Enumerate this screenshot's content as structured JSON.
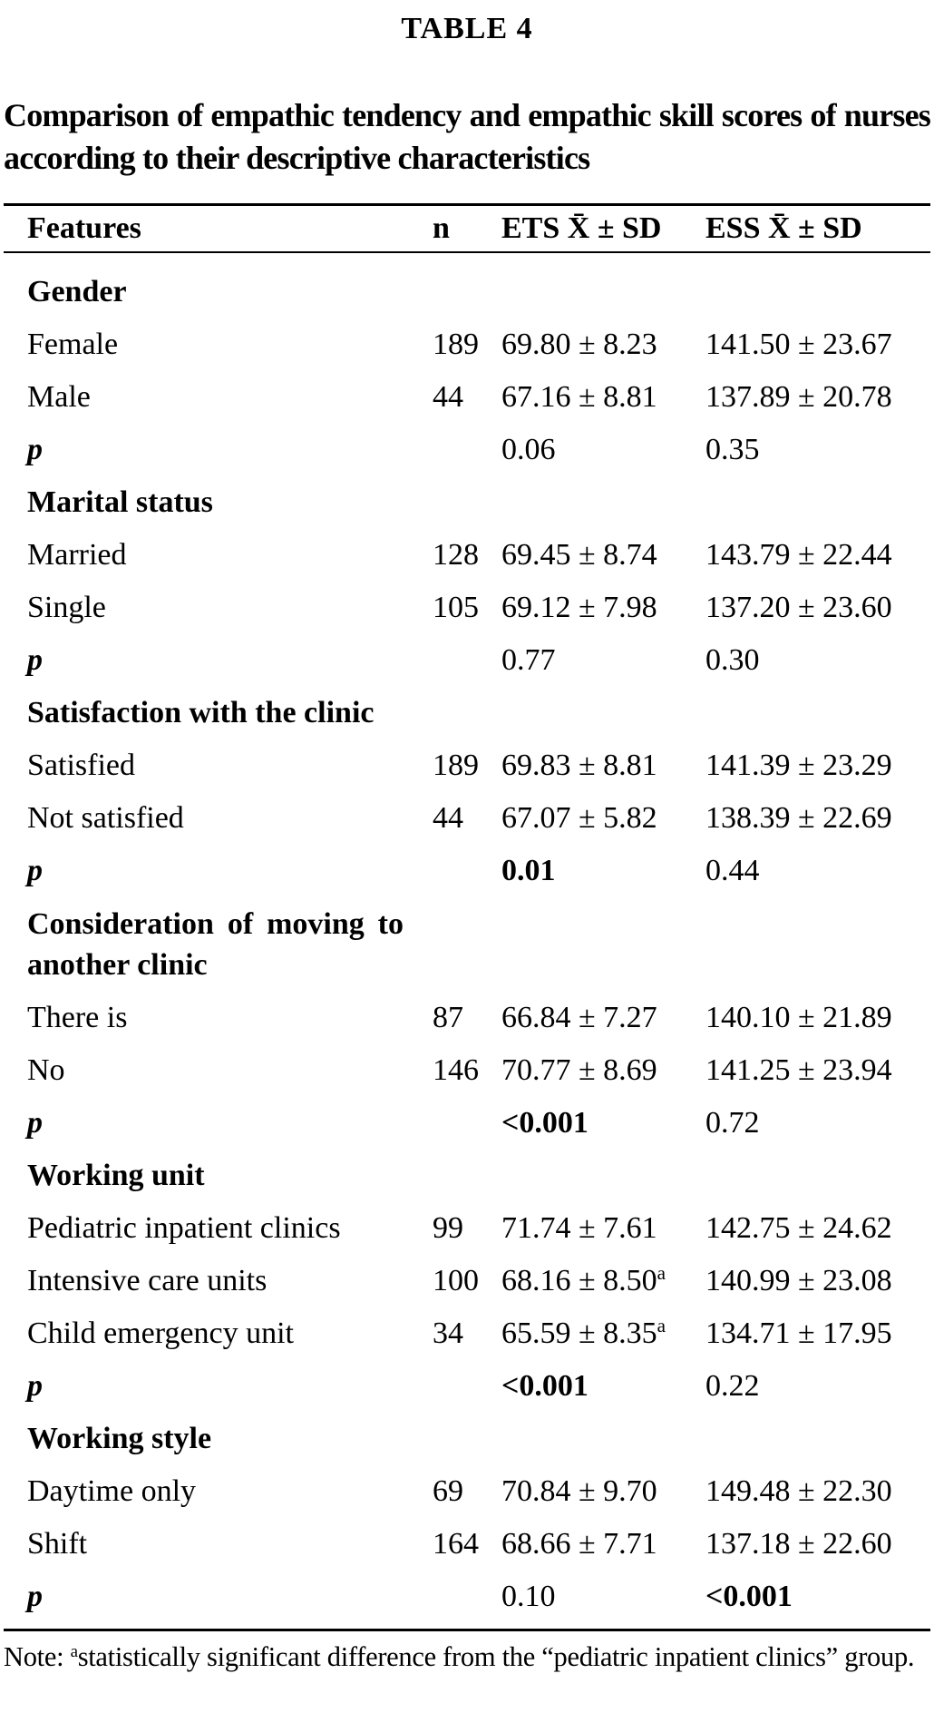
{
  "page": {
    "table_label": "TABLE 4",
    "title": "Comparison of empathic tendency and empathic skill scores of nurses according to their descriptive characteristics"
  },
  "header": {
    "features": "Features",
    "n": "n",
    "ets": "ETS X̄ ± SD",
    "ess": "ESS X̄ ± SD"
  },
  "rows": [
    {
      "type": "section",
      "label": "Gender"
    },
    {
      "type": "data",
      "label": "Female",
      "n": "189",
      "ets": "69.80 ± 8.23",
      "ess": "141.50 ± 23.67"
    },
    {
      "type": "data",
      "label": "Male",
      "n": "44",
      "ets": "67.16 ± 8.81",
      "ess": "137.89 ± 20.78"
    },
    {
      "type": "p",
      "label": "p",
      "ets": "0.06",
      "ess": "0.35"
    },
    {
      "type": "section",
      "label": "Marital status"
    },
    {
      "type": "data",
      "label": "Married",
      "n": "128",
      "ets": "69.45 ± 8.74",
      "ess": "143.79 ± 22.44"
    },
    {
      "type": "data",
      "label": "Single",
      "n": "105",
      "ets": "69.12 ± 7.98",
      "ess": "137.20 ± 23.60"
    },
    {
      "type": "p",
      "label": "p",
      "ets": "0.77",
      "ess": "0.30"
    },
    {
      "type": "section",
      "label": "Satisfaction with the clinic"
    },
    {
      "type": "data",
      "label": "Satisfied",
      "n": "189",
      "ets": "69.83 ± 8.81",
      "ess": "141.39 ± 23.29"
    },
    {
      "type": "data",
      "label": "Not satisfied",
      "n": "44",
      "ets": "67.07 ± 5.82",
      "ess": "138.39 ± 22.69"
    },
    {
      "type": "p",
      "label": "p",
      "ets": "0.01",
      "ess": "0.44"
    },
    {
      "type": "section",
      "label": "Consideration of moving to another clinic"
    },
    {
      "type": "data",
      "label": "There is",
      "n": "87",
      "ets": "66.84 ± 7.27",
      "ess": "140.10 ± 21.89"
    },
    {
      "type": "data",
      "label": "No",
      "n": "146",
      "ets": "70.77 ± 8.69",
      "ess": "141.25 ± 23.94"
    },
    {
      "type": "p",
      "label": "p",
      "ets": "<0.001",
      "ess": "0.72"
    },
    {
      "type": "section",
      "label": "Working unit"
    },
    {
      "type": "data",
      "label": "Pediatric inpatient clinics",
      "n": "99",
      "ets": "71.74 ± 7.61",
      "ess": "142.75 ± 24.62"
    },
    {
      "type": "data",
      "label": "Intensive care units",
      "n": "100",
      "ets": "68.16 ± 8.50",
      "ets_sup": "a",
      "ess": "140.99 ± 23.08"
    },
    {
      "type": "data",
      "label": "Child emergency unit",
      "n": "34",
      "ets": "65.59 ± 8.35",
      "ets_sup": "a",
      "ess": "134.71 ± 17.95"
    },
    {
      "type": "p",
      "label": "p",
      "ets": "<0.001",
      "ess": "0.22"
    },
    {
      "type": "section",
      "label": "Working style"
    },
    {
      "type": "data",
      "label": "Daytime only",
      "n": "69",
      "ets": "70.84 ± 9.70",
      "ess": "149.48 ± 22.30"
    },
    {
      "type": "data",
      "label": "Shift",
      "n": "164",
      "ets": "68.66 ± 7.71",
      "ess": "137.18 ± 22.60"
    },
    {
      "type": "p",
      "label": "p",
      "ets": "0.10",
      "ess": "<0.001"
    }
  ],
  "note": {
    "label": "Note: ",
    "sup": "a",
    "text": "statistically significant difference from the “pediatric inpatient clinics” group."
  }
}
